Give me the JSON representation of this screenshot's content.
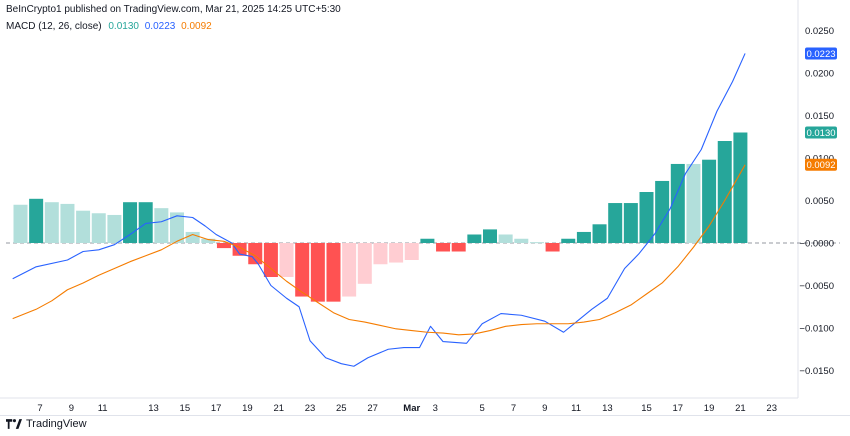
{
  "header": {
    "attribution": "BeInCrypto1 published on TradingView.com, Mar 21, 2025 14:25 UTC+5:30"
  },
  "legend": {
    "indicator": "MACD (12, 26, close)",
    "hist_value": "0.0130",
    "macd_value": "0.0223",
    "signal_value": "0.0092"
  },
  "footer": {
    "brand": "TradingView"
  },
  "colors": {
    "hist_pos_strong": "#26a69a",
    "hist_pos_weak": "#b2dfdb",
    "hist_neg_strong": "#ff5252",
    "hist_neg_weak": "#ffcdd2",
    "macd_line": "#2962ff",
    "signal_line": "#f57c00"
  },
  "chart_data": {
    "type": "line",
    "ylim": [
      -0.018,
      0.0265
    ],
    "y_ticks": [
      "0.0250",
      "0.0200",
      "0.0150",
      "0.0100",
      "0.0050",
      "−0.0000",
      "−0.0050",
      "−0.0100",
      "−0.0150"
    ],
    "x_ticks": [
      {
        "label": "7",
        "x": 1.25
      },
      {
        "label": "9",
        "x": 3.25
      },
      {
        "label": "11",
        "x": 5.25
      },
      {
        "label": "13",
        "x": 8.5
      },
      {
        "label": "15",
        "x": 10.5
      },
      {
        "label": "17",
        "x": 12.5
      },
      {
        "label": "19",
        "x": 14.5
      },
      {
        "label": "21",
        "x": 16.5
      },
      {
        "label": "23",
        "x": 18.5
      },
      {
        "label": "25",
        "x": 20.5
      },
      {
        "label": "27",
        "x": 22.5
      },
      {
        "label": "Mar",
        "x": 25.0,
        "bold": true
      },
      {
        "label": "3",
        "x": 26.5
      },
      {
        "label": "5",
        "x": 29.5
      },
      {
        "label": "7",
        "x": 31.5
      },
      {
        "label": "9",
        "x": 33.5
      },
      {
        "label": "11",
        "x": 35.5
      },
      {
        "label": "13",
        "x": 37.5
      },
      {
        "label": "15",
        "x": 40.0
      },
      {
        "label": "17",
        "x": 42.0
      },
      {
        "label": "19",
        "x": 44.0
      },
      {
        "label": "21",
        "x": 46.0
      },
      {
        "label": "23",
        "x": 48.0
      }
    ],
    "histogram": [
      {
        "x": 0,
        "v": 0.0045,
        "shade": "weak"
      },
      {
        "x": 1,
        "v": 0.0052,
        "shade": "strong"
      },
      {
        "x": 2,
        "v": 0.0048,
        "shade": "weak"
      },
      {
        "x": 3,
        "v": 0.0046,
        "shade": "weak"
      },
      {
        "x": 4,
        "v": 0.0038,
        "shade": "weak"
      },
      {
        "x": 5,
        "v": 0.0035,
        "shade": "weak"
      },
      {
        "x": 6,
        "v": 0.0033,
        "shade": "weak"
      },
      {
        "x": 7,
        "v": 0.0048,
        "shade": "strong"
      },
      {
        "x": 8,
        "v": 0.0048,
        "shade": "strong"
      },
      {
        "x": 9,
        "v": 0.0041,
        "shade": "weak"
      },
      {
        "x": 10,
        "v": 0.0036,
        "shade": "weak"
      },
      {
        "x": 11,
        "v": 0.0013,
        "shade": "weak"
      },
      {
        "x": 12,
        "v": 0.0005,
        "shade": "weak"
      },
      {
        "x": 13,
        "v": -0.0006,
        "shade": "strong"
      },
      {
        "x": 14,
        "v": -0.0015,
        "shade": "strong"
      },
      {
        "x": 15,
        "v": -0.0025,
        "shade": "strong"
      },
      {
        "x": 16,
        "v": -0.004,
        "shade": "strong"
      },
      {
        "x": 17,
        "v": -0.004,
        "shade": "weak"
      },
      {
        "x": 18,
        "v": -0.0063,
        "shade": "strong"
      },
      {
        "x": 19,
        "v": -0.0069,
        "shade": "strong"
      },
      {
        "x": 20,
        "v": -0.0069,
        "shade": "strong"
      },
      {
        "x": 21,
        "v": -0.0063,
        "shade": "weak"
      },
      {
        "x": 22,
        "v": -0.0048,
        "shade": "weak"
      },
      {
        "x": 23,
        "v": -0.0025,
        "shade": "weak"
      },
      {
        "x": 24,
        "v": -0.0023,
        "shade": "weak"
      },
      {
        "x": 25,
        "v": -0.002,
        "shade": "weak"
      },
      {
        "x": 26,
        "v": 0.0005,
        "shade": "strong"
      },
      {
        "x": 27,
        "v": -0.001,
        "shade": "strong"
      },
      {
        "x": 28,
        "v": -0.001,
        "shade": "strong"
      },
      {
        "x": 29,
        "v": 0.001,
        "shade": "strong"
      },
      {
        "x": 30,
        "v": 0.0016,
        "shade": "strong"
      },
      {
        "x": 31,
        "v": 0.001,
        "shade": "weak"
      },
      {
        "x": 32,
        "v": 0.0005,
        "shade": "weak"
      },
      {
        "x": 33,
        "v": 0.0001,
        "shade": "weak"
      },
      {
        "x": 34,
        "v": -0.001,
        "shade": "strong"
      },
      {
        "x": 35,
        "v": 0.0005,
        "shade": "strong"
      },
      {
        "x": 36,
        "v": 0.0013,
        "shade": "strong"
      },
      {
        "x": 37,
        "v": 0.0022,
        "shade": "strong"
      },
      {
        "x": 38,
        "v": 0.0047,
        "shade": "strong"
      },
      {
        "x": 39,
        "v": 0.0047,
        "shade": "strong"
      },
      {
        "x": 40,
        "v": 0.006,
        "shade": "strong"
      },
      {
        "x": 41,
        "v": 0.0073,
        "shade": "strong"
      },
      {
        "x": 42,
        "v": 0.0093,
        "shade": "strong"
      },
      {
        "x": 43,
        "v": 0.0093,
        "shade": "weak"
      },
      {
        "x": 44,
        "v": 0.0098,
        "shade": "strong"
      },
      {
        "x": 45,
        "v": 0.012,
        "shade": "strong"
      },
      {
        "x": 46,
        "v": 0.013,
        "shade": "strong"
      }
    ],
    "series": [
      {
        "name": "MACD",
        "points": [
          [
            -0.5,
            -0.0042
          ],
          [
            1,
            -0.0028
          ],
          [
            3,
            -0.002
          ],
          [
            4,
            -0.001
          ],
          [
            5,
            -0.0008
          ],
          [
            6,
            -0.0002
          ],
          [
            7,
            0.001
          ],
          [
            8,
            0.0023
          ],
          [
            9,
            0.0025
          ],
          [
            10,
            0.0032
          ],
          [
            11,
            0.003
          ],
          [
            11.8,
            0.002
          ],
          [
            12.5,
            0.001
          ],
          [
            13.5,
            0.0
          ],
          [
            14,
            -0.0013
          ],
          [
            14.8,
            -0.0016
          ],
          [
            15.2,
            -0.0025
          ],
          [
            16,
            -0.005
          ],
          [
            17,
            -0.0065
          ],
          [
            17.8,
            -0.0075
          ],
          [
            18.5,
            -0.0115
          ],
          [
            19.5,
            -0.0135
          ],
          [
            20.5,
            -0.0142
          ],
          [
            21.3,
            -0.0145
          ],
          [
            22.2,
            -0.0135
          ],
          [
            23.5,
            -0.0125
          ],
          [
            24.5,
            -0.0123
          ],
          [
            25.5,
            -0.0123
          ],
          [
            26.2,
            -0.0098
          ],
          [
            27,
            -0.0116
          ],
          [
            28.5,
            -0.0118
          ],
          [
            29.5,
            -0.0095
          ],
          [
            30.7,
            -0.0083
          ],
          [
            32,
            -0.0085
          ],
          [
            33.5,
            -0.0092
          ],
          [
            34.7,
            -0.0105
          ],
          [
            35.5,
            -0.0093
          ],
          [
            36.5,
            -0.0078
          ],
          [
            37.5,
            -0.0065
          ],
          [
            38.6,
            -0.003
          ],
          [
            39.5,
            -0.0013
          ],
          [
            40.5,
            0.001
          ],
          [
            41.5,
            0.004
          ],
          [
            42.5,
            0.0082
          ],
          [
            43.5,
            0.011
          ],
          [
            44.5,
            0.0155
          ],
          [
            45.5,
            0.019
          ],
          [
            46.3,
            0.0223
          ]
        ]
      },
      {
        "name": "Signal",
        "points": [
          [
            -0.5,
            -0.0089
          ],
          [
            1,
            -0.0078
          ],
          [
            2,
            -0.0068
          ],
          [
            3,
            -0.0055
          ],
          [
            4,
            -0.0047
          ],
          [
            5,
            -0.0038
          ],
          [
            6,
            -0.003
          ],
          [
            7,
            -0.0022
          ],
          [
            8,
            -0.0015
          ],
          [
            9,
            -0.0008
          ],
          [
            10,
            0.0002
          ],
          [
            11,
            0.001
          ],
          [
            12,
            0.0004
          ],
          [
            13,
            0.0002
          ],
          [
            14,
            -0.0005
          ],
          [
            15,
            -0.0015
          ],
          [
            16,
            -0.003
          ],
          [
            17,
            -0.0045
          ],
          [
            18,
            -0.0058
          ],
          [
            19,
            -0.007
          ],
          [
            20,
            -0.0082
          ],
          [
            21,
            -0.009
          ],
          [
            22,
            -0.0093
          ],
          [
            23,
            -0.0097
          ],
          [
            24,
            -0.0101
          ],
          [
            25,
            -0.0103
          ],
          [
            26,
            -0.0105
          ],
          [
            27,
            -0.0106
          ],
          [
            28,
            -0.0108
          ],
          [
            29,
            -0.0107
          ],
          [
            30,
            -0.0103
          ],
          [
            31,
            -0.0098
          ],
          [
            32,
            -0.0096
          ],
          [
            33,
            -0.0095
          ],
          [
            34,
            -0.0095
          ],
          [
            35,
            -0.0095
          ],
          [
            36,
            -0.0093
          ],
          [
            37,
            -0.009
          ],
          [
            38,
            -0.0082
          ],
          [
            39,
            -0.0073
          ],
          [
            40,
            -0.006
          ],
          [
            41,
            -0.0047
          ],
          [
            42,
            -0.0028
          ],
          [
            43,
            -0.0005
          ],
          [
            44,
            0.002
          ],
          [
            45,
            0.005
          ],
          [
            46.3,
            0.0092
          ]
        ]
      }
    ],
    "badges": [
      {
        "series": "MACD",
        "value": 0.0223,
        "text": "0.0223",
        "color": "#2962ff"
      },
      {
        "series": "Histogram",
        "value": 0.013,
        "text": "0.0130",
        "color": "#26a69a"
      },
      {
        "series": "Signal",
        "value": 0.0092,
        "text": "0.0092",
        "color": "#f57c00"
      }
    ],
    "zero_line": "dashed",
    "grid": false,
    "legend_position": "top-left"
  }
}
